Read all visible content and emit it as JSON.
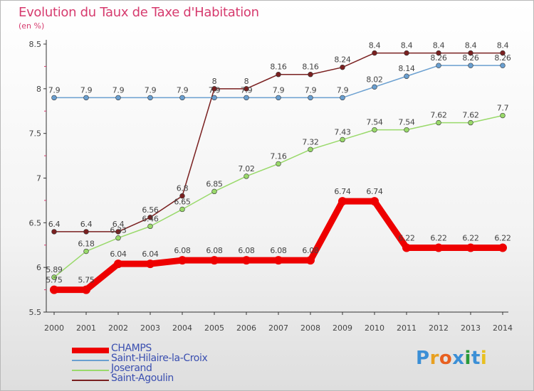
{
  "chart_data": {
    "type": "line",
    "title": "Evolution du Taux de Taxe d'Habitation",
    "ylabel": "(en %)",
    "ylim": [
      5.5,
      8.5
    ],
    "yticks": [
      "5.5",
      "6",
      "6.5",
      "7",
      "7.5",
      "8",
      "8.5"
    ],
    "x": [
      "2000",
      "2001",
      "2002",
      "2003",
      "2004",
      "2005",
      "2006",
      "2007",
      "2008",
      "2009",
      "2010",
      "2011",
      "2012",
      "2013",
      "2014"
    ],
    "grid": false,
    "legend_position": "bottom-left",
    "series": [
      {
        "name": "Saint-Agoulin",
        "color": "#7a2020",
        "values": [
          6.4,
          6.4,
          6.4,
          6.56,
          6.8,
          8,
          8,
          8.16,
          8.16,
          8.24,
          8.4,
          8.4,
          8.4,
          8.4,
          8.4
        ],
        "labels": [
          "6.4",
          "6.4",
          "6.4",
          "6.56",
          "6.8",
          "8",
          "8",
          "8.16",
          "8.16",
          "8.24",
          "8.4",
          "8.4",
          "8.4",
          "8.4",
          "8.4"
        ]
      },
      {
        "name": "Joserand",
        "color": "#99d96a",
        "values": [
          5.89,
          6.18,
          6.33,
          6.46,
          6.65,
          6.85,
          7.02,
          7.16,
          7.32,
          7.43,
          7.54,
          7.54,
          7.62,
          7.62,
          7.7
        ],
        "labels": [
          "5.89",
          "6.18",
          "6.33",
          "6.46",
          "6.65",
          "6.85",
          "7.02",
          "7.16",
          "7.32",
          "7.43",
          "7.54",
          "7.54",
          "7.62",
          "7.62",
          "7.7"
        ]
      },
      {
        "name": "Saint-Hilaire-la-Croix",
        "color": "#6a9fd0",
        "values": [
          7.9,
          7.9,
          7.9,
          7.9,
          7.9,
          7.9,
          7.9,
          7.9,
          7.9,
          7.9,
          8.02,
          8.14,
          8.26,
          8.26,
          8.26
        ],
        "labels": [
          "7.9",
          "7.9",
          "7.9",
          "7.9",
          "7.9",
          "7.9",
          "7.9",
          "7.9",
          "7.9",
          "7.9",
          "8.02",
          "8.14",
          "8.26",
          "8.26",
          "8.26"
        ]
      },
      {
        "name": "CHAMPS",
        "color": "#ee0000",
        "values": [
          5.75,
          5.75,
          6.04,
          6.04,
          6.08,
          6.08,
          6.08,
          6.08,
          6.08,
          6.74,
          6.74,
          6.22,
          6.22,
          6.22,
          6.22
        ],
        "labels": [
          "5.75",
          "5.75",
          "6.04",
          "6.04",
          "6.08",
          "6.08",
          "6.08",
          "6.08",
          "6.08",
          "6.74",
          "6.74",
          "6.22",
          "6.22",
          "6.22",
          "6.22"
        ]
      }
    ]
  },
  "legend_order": [
    3,
    2,
    1,
    0
  ],
  "logo": {
    "letters": [
      "P",
      "r",
      "o",
      "x",
      "i",
      "t",
      "i"
    ],
    "colors": [
      "#3b8fd6",
      "#e8a020",
      "#e86020",
      "#3b8fd6",
      "#2a9a3a",
      "#3b8fd6",
      "#e8c020"
    ]
  }
}
